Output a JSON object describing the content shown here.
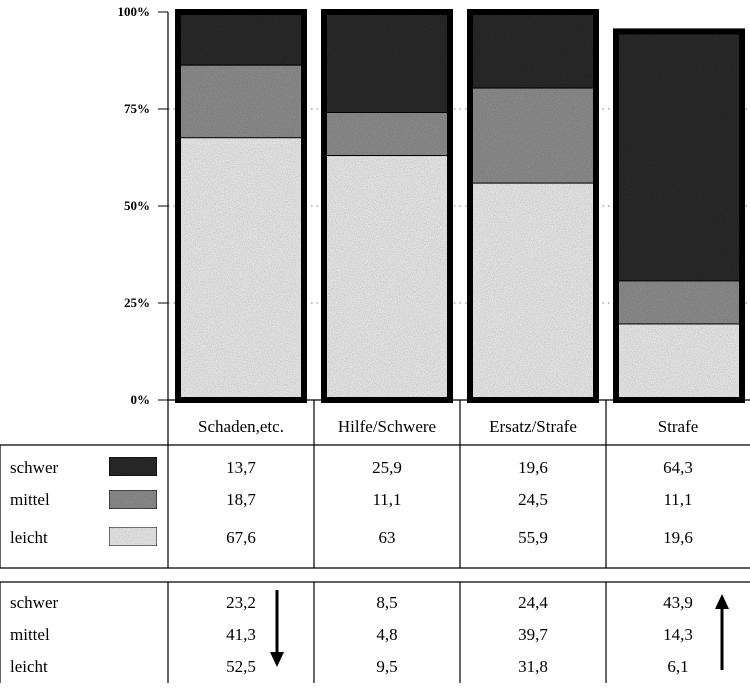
{
  "chart_data": {
    "type": "bar",
    "stacked": true,
    "normalized": true,
    "categories": [
      "Schaden,etc.",
      "Hilfe/Schwere",
      "Ersatz/Strafe",
      "Strafe"
    ],
    "series": [
      {
        "name": "schwer",
        "values": [
          13.7,
          25.9,
          19.6,
          64.3
        ],
        "color": "#2a2a2a"
      },
      {
        "name": "mittel",
        "values": [
          18.7,
          11.1,
          24.5,
          11.1
        ],
        "color": "#8a8a8a"
      },
      {
        "name": "leicht",
        "values": [
          67.6,
          63,
          55.9,
          19.6
        ],
        "color": "#e6e6e6"
      }
    ],
    "yticks": [
      "0%",
      "25%",
      "50%",
      "75%",
      "100%"
    ],
    "ylim": [
      0,
      100
    ],
    "grid": "horizontal dotted",
    "table1": {
      "rows": [
        {
          "label": "schwer",
          "values": [
            "13,7",
            "25,9",
            "19,6",
            "64,3"
          ]
        },
        {
          "label": "mittel",
          "values": [
            "18,7",
            "11,1",
            "24,5",
            "11,1"
          ]
        },
        {
          "label": "leicht",
          "values": [
            "67,6",
            "63",
            "55,9",
            "19,6"
          ]
        }
      ]
    },
    "table2": {
      "rows": [
        {
          "label": "schwer",
          "values": [
            "23,2",
            "8,5",
            "24,4",
            "43,9"
          ]
        },
        {
          "label": "mittel",
          "values": [
            "41,3",
            "4,8",
            "39,7",
            "14,3"
          ]
        },
        {
          "label": "leicht",
          "values": [
            "52,5",
            "9,5",
            "31,8",
            "6,1"
          ]
        }
      ],
      "arrows": [
        {
          "column": 0,
          "direction": "down"
        },
        {
          "column": 3,
          "direction": "up"
        }
      ]
    }
  }
}
